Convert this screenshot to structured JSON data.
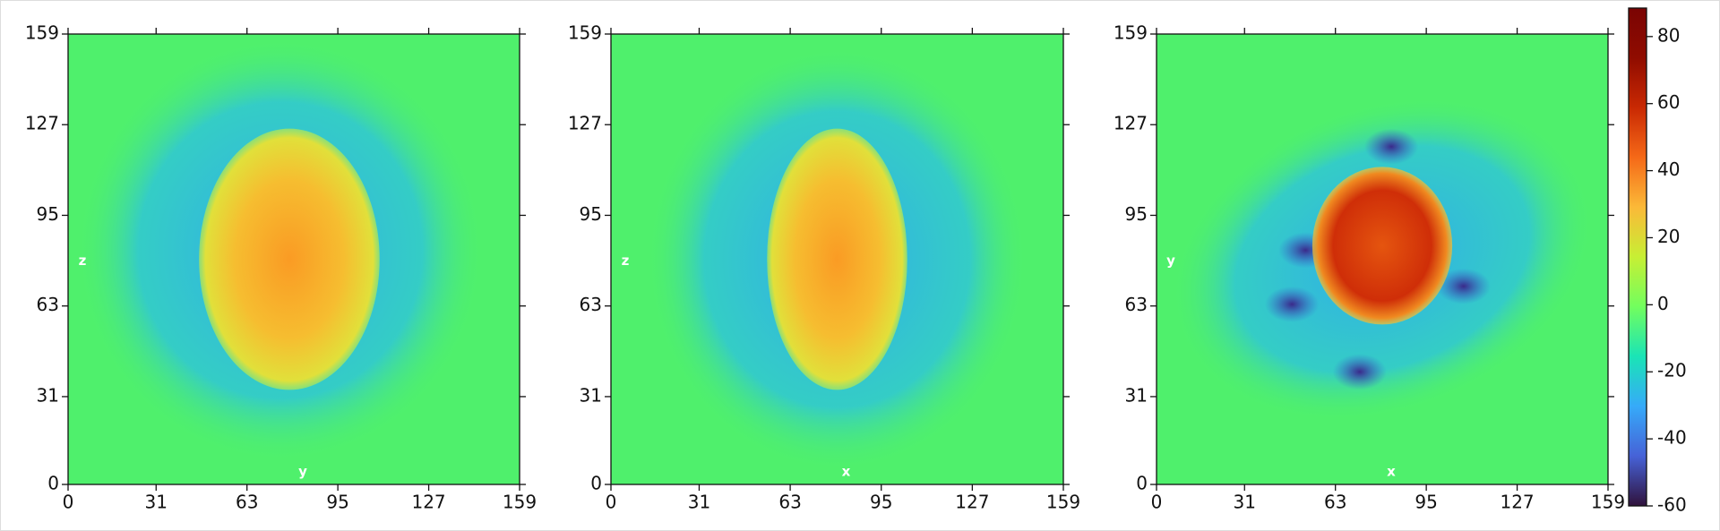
{
  "chart_data": [
    {
      "type": "heatmap",
      "xlabel": "y",
      "ylabel": "z",
      "colormap": "turbo",
      "xlim": [
        0,
        159
      ],
      "ylim": [
        0,
        159
      ],
      "xticks": [
        0,
        31,
        63,
        95,
        127,
        159
      ],
      "yticks": [
        0,
        31,
        63,
        95,
        127,
        159
      ]
    },
    {
      "type": "heatmap",
      "xlabel": "x",
      "ylabel": "z",
      "colormap": "turbo",
      "xlim": [
        0,
        159
      ],
      "ylim": [
        0,
        159
      ],
      "xticks": [
        0,
        31,
        63,
        95,
        127,
        159
      ],
      "yticks": [
        0,
        31,
        63,
        95,
        127,
        159
      ]
    },
    {
      "type": "heatmap",
      "xlabel": "x",
      "ylabel": "y",
      "colormap": "turbo",
      "xlim": [
        0,
        159
      ],
      "ylim": [
        0,
        159
      ],
      "xticks": [
        0,
        31,
        63,
        95,
        127,
        159
      ],
      "yticks": [
        0,
        31,
        63,
        95,
        127,
        159
      ]
    }
  ],
  "colorbar": {
    "clim": [
      -60,
      88.5
    ],
    "ticks": [
      -60,
      -40,
      -20,
      0,
      20,
      40,
      60,
      80
    ]
  }
}
